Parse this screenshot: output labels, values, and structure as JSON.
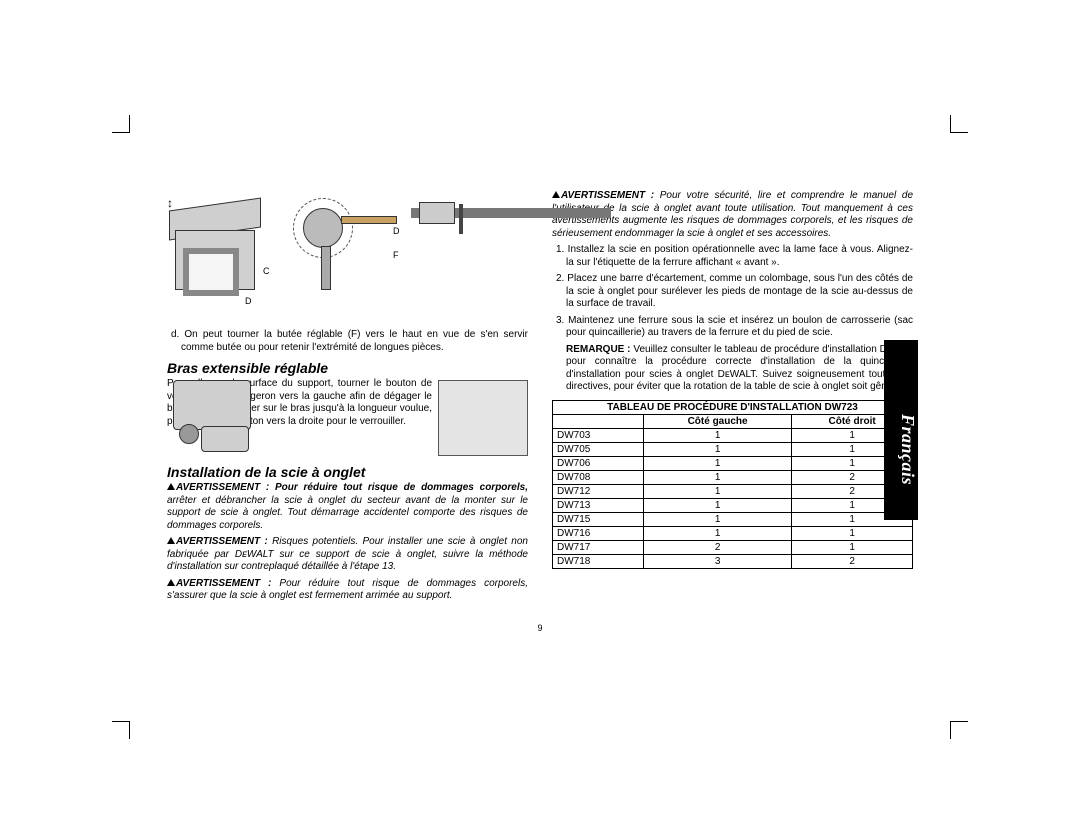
{
  "cropMarks": {
    "color": "#000000"
  },
  "sideTab": {
    "label": "Français"
  },
  "pageNumber": "9",
  "leftCol": {
    "figLabels": {
      "C": "C",
      "D1": "D",
      "D2": "D",
      "F": "F"
    },
    "item_d": "d. On peut tourner la butée réglable (F) vers le haut en vue de s'en servir comme butée ou pour retenir l'extrémité de longues pièces.",
    "h_bras": "Bras extensible réglable",
    "bras_para": "Pour allonger la surface du support, tourner le bouton de verrouillage du longeron vers la gauche afin de dégager le bras extensible. Tirer sur le bras jusqu'à la longueur voulue, puis tourner le bouton vers la droite pour le verrouiller.",
    "h_install": "Installation de la scie à onglet",
    "warn1_bold": "AVERTISSEMENT : Pour réduire tout risque de dommages corporels,",
    "warn1_rest": " arrêter et débrancher la scie à onglet du secteur avant de la monter sur le support de scie à onglet. Tout démarrage accidentel comporte des risques de dommages corporels.",
    "warn2_lead": "AVERTISSEMENT :",
    "warn2_rest": " Risques potentiels. Pour installer une scie à onglet non fabriquée par DᴇWALT sur ce support de scie à onglet, suivre la méthode d'installation sur contreplaqué détaillée à l'étape 13.",
    "warn3_lead": "AVERTISSEMENT :",
    "warn3_rest": " Pour réduire tout risque de dommages corporels, s'assurer que la scie à onglet est fermement arrimée au support."
  },
  "rightCol": {
    "warn4_lead": "AVERTISSEMENT :",
    "warn4_rest": " Pour votre sécurité, lire et comprendre le manuel de l'utilisateur de la scie à onglet avant toute utilisation. Tout manquement à ces avertissements augmente les risques de dommages corporels, et les risques de sérieusement endommager la scie à onglet et ses accessoires.",
    "step1": "1. Installez la scie en position opérationnelle avec la lame face à vous. Alignez-la sur l'étiquette de la ferrure affichant « avant ».",
    "step2": "2. Placez une barre d'écartement, comme un colombage, sous l'un des côtés de la scie à onglet pour surélever les pieds de montage de la scie au-dessus de la surface de travail.",
    "step3": "3. Maintenez une ferrure sous la scie et insérez un boulon de carrosserie (sac pour quincaillerie) au travers de la ferrure et du pied de scie.",
    "remarque_lead": "REMARQUE :",
    "remarque_rest": " Veuillez consulter le tableau de procédure d'installation DW723 pour connaître la procédure correcte d'installation de la quincaillerie d'installation pour scies à onglet DᴇWALT. Suivez soigneusement toutes les directives, pour éviter que la rotation de la table de scie à onglet soit gênée.",
    "table": {
      "title": "TABLEAU DE PROCÉDURE D'INSTALLATION DW723",
      "col_left": "Côté gauche",
      "col_right": "Côté droit",
      "rows": [
        {
          "model": "DW703",
          "left": "1",
          "right": "1"
        },
        {
          "model": "DW705",
          "left": "1",
          "right": "1"
        },
        {
          "model": "DW706",
          "left": "1",
          "right": "1"
        },
        {
          "model": "DW708",
          "left": "1",
          "right": "2"
        },
        {
          "model": "DW712",
          "left": "1",
          "right": "2"
        },
        {
          "model": "DW713",
          "left": "1",
          "right": "1"
        },
        {
          "model": "DW715",
          "left": "1",
          "right": "1"
        },
        {
          "model": "DW716",
          "left": "1",
          "right": "1"
        },
        {
          "model": "DW717",
          "left": "2",
          "right": "1"
        },
        {
          "model": "DW718",
          "left": "3",
          "right": "2"
        }
      ]
    }
  }
}
